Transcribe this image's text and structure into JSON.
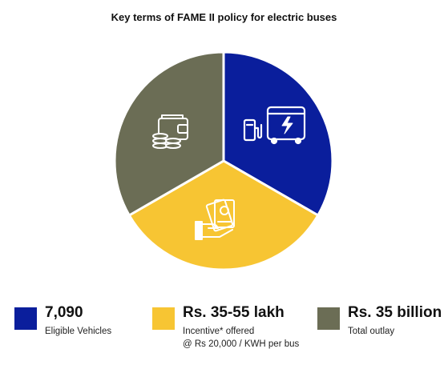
{
  "chart_data": {
    "type": "pie",
    "title": "Key terms of FAME II policy for electric buses",
    "slices": [
      {
        "value": 1,
        "color": "#0a1e9c",
        "icon": "electric-bus-charging-icon"
      },
      {
        "value": 1,
        "color": "#f7c533",
        "icon": "hand-holding-cash-icon"
      },
      {
        "value": 1,
        "color": "#6b6d55",
        "icon": "wallet-coins-icon"
      }
    ],
    "legend": [
      {
        "value": "7,090",
        "description": "Eligible Vehicles",
        "note": "",
        "color": "#0a1e9c"
      },
      {
        "value": "Rs. 35-55 lakh",
        "description": "Incentive* offered",
        "note": "@ Rs 20,000 / KWH per bus",
        "color": "#f7c533"
      },
      {
        "value": "Rs. 35 billion",
        "description": "Total outlay",
        "note": "",
        "color": "#6b6d55"
      }
    ]
  }
}
